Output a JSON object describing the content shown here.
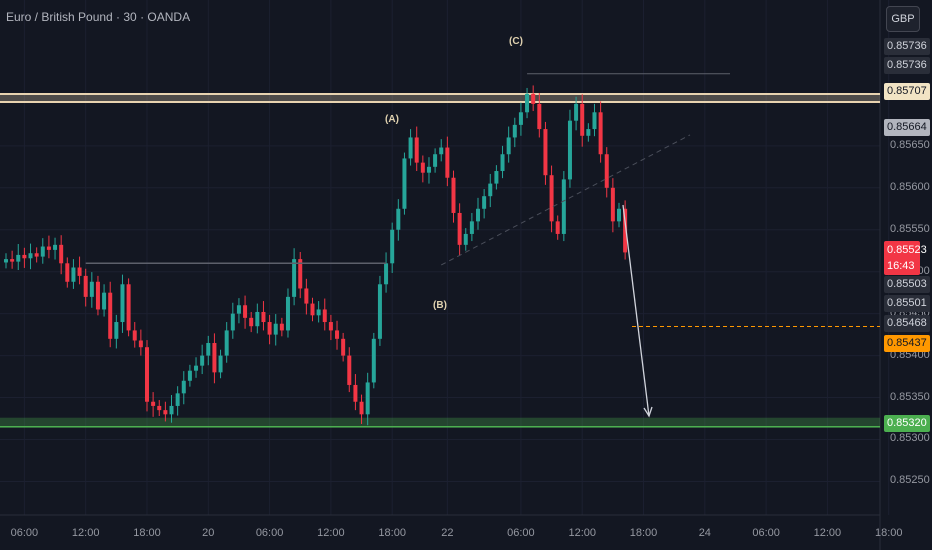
{
  "header": {
    "title": "Euro / British Pound · 30 · OANDA",
    "currency_button": "GBP"
  },
  "colors": {
    "background": "#131722",
    "bull": "#26a69a",
    "bear": "#f23645",
    "resistance_zone": "#e8d3b0",
    "support_zone": "#4caf50",
    "target_line": "#ff9800",
    "projection_arrow": "#d1d4dc"
  },
  "chart_data": {
    "type": "candlestick",
    "y_axis": {
      "min": 0.8521,
      "max": 0.858,
      "ticks": [
        0.8525,
        0.853,
        0.8535,
        0.854,
        0.8545,
        0.855,
        0.8555,
        0.856,
        0.8565
      ]
    },
    "x_axis": {
      "ticks": [
        {
          "label": "06:00",
          "bar": 3
        },
        {
          "label": "12:00",
          "bar": 13
        },
        {
          "label": "18:00",
          "bar": 23
        },
        {
          "label": "20",
          "bar": 33
        },
        {
          "label": "06:00",
          "bar": 43
        },
        {
          "label": "12:00",
          "bar": 53
        },
        {
          "label": "18:00",
          "bar": 63
        },
        {
          "label": "22",
          "bar": 72
        },
        {
          "label": "06:00",
          "bar": 84
        },
        {
          "label": "12:00",
          "bar": 94
        },
        {
          "label": "18:00",
          "bar": 104
        },
        {
          "label": "24",
          "bar": 114
        },
        {
          "label": "06:00",
          "bar": 124
        },
        {
          "label": "12:00",
          "bar": 134
        },
        {
          "label": "18:00",
          "bar": 144
        }
      ]
    },
    "candles_close": [
      0.85515,
      0.85512,
      0.8552,
      0.85516,
      0.85522,
      0.85518,
      0.8553,
      0.85526,
      0.85532,
      0.8551,
      0.85488,
      0.85505,
      0.85495,
      0.8547,
      0.85488,
      0.85455,
      0.85475,
      0.8542,
      0.8544,
      0.85485,
      0.8543,
      0.85418,
      0.8541,
      0.85345,
      0.8534,
      0.85335,
      0.8533,
      0.8534,
      0.85355,
      0.8537,
      0.85382,
      0.85388,
      0.854,
      0.85415,
      0.8538,
      0.854,
      0.8543,
      0.8545,
      0.8546,
      0.85445,
      0.85435,
      0.85452,
      0.8544,
      0.85425,
      0.85438,
      0.8543,
      0.8547,
      0.85515,
      0.8548,
      0.85462,
      0.85448,
      0.85455,
      0.8544,
      0.8543,
      0.8542,
      0.854,
      0.85365,
      0.85345,
      0.8533,
      0.85368,
      0.8542,
      0.85485,
      0.8551,
      0.8555,
      0.85575,
      0.85635,
      0.8566,
      0.8563,
      0.85618,
      0.85625,
      0.8564,
      0.85648,
      0.85612,
      0.8557,
      0.85532,
      0.85545,
      0.8556,
      0.85575,
      0.8559,
      0.85605,
      0.8562,
      0.8564,
      0.8566,
      0.85675,
      0.8569,
      0.85712,
      0.857,
      0.8567,
      0.85615,
      0.8556,
      0.85545,
      0.8561,
      0.8568,
      0.857,
      0.85662,
      0.8567,
      0.8569,
      0.8564,
      0.856,
      0.8556,
      0.85575,
      0.85523
    ],
    "levels": {
      "current_price": "0.85523",
      "countdown": "16:43",
      "resistance": "0.85707",
      "target": "0.85437",
      "support": "0.85320",
      "right_labels": [
        "0.85736",
        "0.85736",
        "0.85664",
        "0.85503",
        "0.85501",
        "0.85468"
      ]
    },
    "wave_labels": [
      "(A)",
      "(B)",
      "(C)"
    ]
  }
}
